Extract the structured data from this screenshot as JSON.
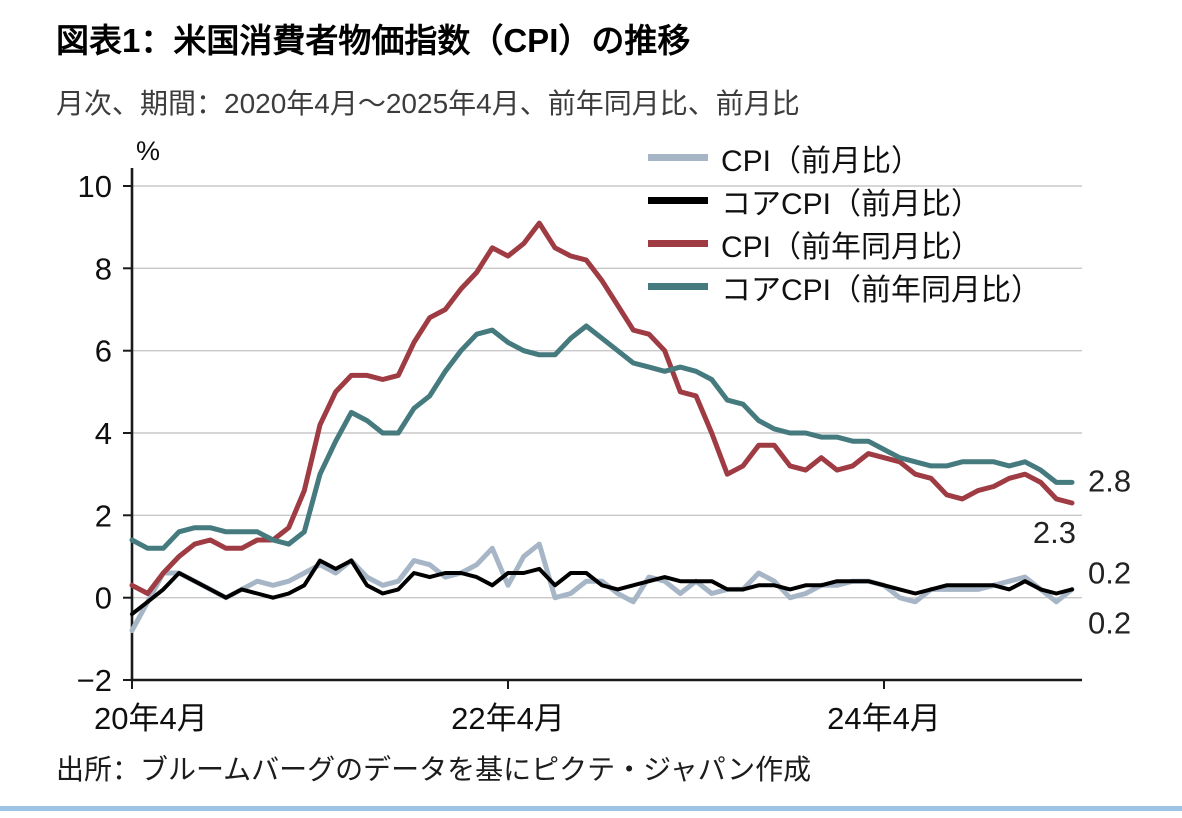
{
  "header": {
    "title": "図表1：米国消費者物価指数（CPI）の推移",
    "subtitle": "月次、期間：2020年4月～2025年4月、前年同月比、前月比"
  },
  "footer": {
    "source": "出所：ブルームバーグのデータを基にピクテ・ジャパン作成",
    "rule_color": "#9dc3e6"
  },
  "chart_data": {
    "type": "line",
    "title": "米国消費者物価指数（CPI）の推移",
    "ylabel": "%",
    "xlabel": "",
    "ylim": [
      -2,
      10
    ],
    "yticks": [
      10,
      8,
      6,
      4,
      2,
      0,
      -2
    ],
    "x_range": [
      "2020年4月",
      "2025年4月"
    ],
    "x_unit": "month",
    "grid": "horizontal",
    "grid_color": "#c8c8c8",
    "axis_color": "#1a1a1a",
    "legend_position": "top-right",
    "xticks": [
      {
        "index": 0,
        "label": "20年4月"
      },
      {
        "index": 24,
        "label": "22年4月"
      },
      {
        "index": 48,
        "label": "24年4月"
      }
    ],
    "series": [
      {
        "id": "cpi_mom",
        "name": "CPI（前月比）",
        "color": "#a6b6c6",
        "values": [
          -0.8,
          -0.1,
          0.6,
          0.6,
          0.4,
          0.2,
          0.0,
          0.2,
          0.4,
          0.3,
          0.4,
          0.6,
          0.8,
          0.6,
          0.9,
          0.5,
          0.3,
          0.4,
          0.9,
          0.8,
          0.5,
          0.6,
          0.8,
          1.2,
          0.3,
          1.0,
          1.3,
          0.0,
          0.1,
          0.4,
          0.4,
          0.1,
          -0.1,
          0.5,
          0.4,
          0.1,
          0.4,
          0.1,
          0.2,
          0.2,
          0.6,
          0.4,
          0.0,
          0.1,
          0.3,
          0.3,
          0.4,
          0.4,
          0.3,
          0.0,
          -0.1,
          0.2,
          0.2,
          0.2,
          0.2,
          0.3,
          0.4,
          0.5,
          0.2,
          -0.1,
          0.2
        ]
      },
      {
        "id": "core_cpi_mom",
        "name": "コアCPI（前月比）",
        "color": "#000000",
        "values": [
          -0.4,
          -0.1,
          0.2,
          0.6,
          0.4,
          0.2,
          0.0,
          0.2,
          0.1,
          0.0,
          0.1,
          0.3,
          0.9,
          0.7,
          0.9,
          0.3,
          0.1,
          0.2,
          0.6,
          0.5,
          0.6,
          0.6,
          0.5,
          0.3,
          0.6,
          0.6,
          0.7,
          0.3,
          0.6,
          0.6,
          0.3,
          0.2,
          0.3,
          0.4,
          0.5,
          0.4,
          0.4,
          0.4,
          0.2,
          0.2,
          0.3,
          0.3,
          0.2,
          0.3,
          0.3,
          0.4,
          0.4,
          0.4,
          0.3,
          0.2,
          0.1,
          0.2,
          0.3,
          0.3,
          0.3,
          0.3,
          0.2,
          0.4,
          0.2,
          0.1,
          0.2
        ]
      },
      {
        "id": "cpi_yoy",
        "name": "CPI（前年同月比）",
        "color": "#9e3b43",
        "values": [
          0.3,
          0.1,
          0.6,
          1.0,
          1.3,
          1.4,
          1.2,
          1.2,
          1.4,
          1.4,
          1.7,
          2.6,
          4.2,
          5.0,
          5.4,
          5.4,
          5.3,
          5.4,
          6.2,
          6.8,
          7.0,
          7.5,
          7.9,
          8.5,
          8.3,
          8.6,
          9.1,
          8.5,
          8.3,
          8.2,
          7.7,
          7.1,
          6.5,
          6.4,
          6.0,
          5.0,
          4.9,
          4.0,
          3.0,
          3.2,
          3.7,
          3.7,
          3.2,
          3.1,
          3.4,
          3.1,
          3.2,
          3.5,
          3.4,
          3.3,
          3.0,
          2.9,
          2.5,
          2.4,
          2.6,
          2.7,
          2.9,
          3.0,
          2.8,
          2.4,
          2.3
        ]
      },
      {
        "id": "core_cpi_yoy",
        "name": "コアCPI（前年同月比）",
        "color": "#457a7e",
        "values": [
          1.4,
          1.2,
          1.2,
          1.6,
          1.7,
          1.7,
          1.6,
          1.6,
          1.6,
          1.4,
          1.3,
          1.6,
          3.0,
          3.8,
          4.5,
          4.3,
          4.0,
          4.0,
          4.6,
          4.9,
          5.5,
          6.0,
          6.4,
          6.5,
          6.2,
          6.0,
          5.9,
          5.9,
          6.3,
          6.6,
          6.3,
          6.0,
          5.7,
          5.6,
          5.5,
          5.6,
          5.5,
          5.3,
          4.8,
          4.7,
          4.3,
          4.1,
          4.0,
          4.0,
          3.9,
          3.9,
          3.8,
          3.8,
          3.6,
          3.4,
          3.3,
          3.2,
          3.2,
          3.3,
          3.3,
          3.3,
          3.2,
          3.3,
          3.1,
          2.8,
          2.8
        ]
      }
    ],
    "end_labels": [
      {
        "text": "2.8",
        "series": "core_cpi_yoy"
      },
      {
        "text": "2.3",
        "series": "cpi_yoy"
      },
      {
        "text": "0.2",
        "series": "cpi_mom"
      },
      {
        "text": "0.2",
        "series": "core_cpi_mom"
      }
    ]
  }
}
